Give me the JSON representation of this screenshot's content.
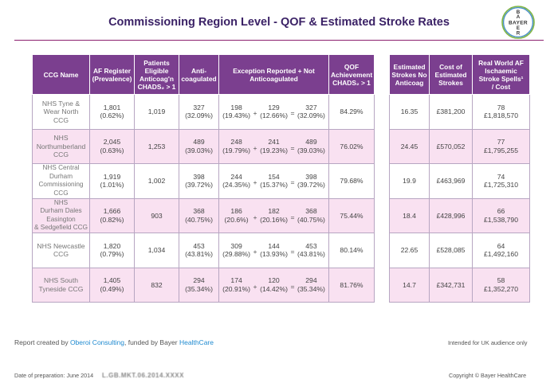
{
  "title": "Commissioning Region Level - QOF & Estimated Stroke Rates",
  "logo": {
    "text_top": "B",
    "text_row": "BAYER",
    "text_bottom": "R",
    "text_middle": "A Y E"
  },
  "table_left": {
    "headers": {
      "ccg": "CCG Name",
      "af_reg": "AF Register (Prevalence)",
      "eligible": [
        "Patients Eligible",
        "Anticoag'n",
        "CHADS₂ > 1"
      ],
      "anticoag": "Anti-coagulated",
      "exception": "Exception Reported + Not Anticoagulated",
      "qof": [
        "QOF Achievement",
        "CHADS₂ > 1"
      ]
    },
    "rows": [
      {
        "ccg": [
          "NHS Tyne & Wear North",
          "CCG"
        ],
        "af": "1,801",
        "af_pct": "(0.62%)",
        "eligible": "1,019",
        "anti": "327",
        "anti_pct": "(32.09%)",
        "e1": "198",
        "e1p": "(19.43%)",
        "e2": "129",
        "e2p": "(12.66%)",
        "e3": "327",
        "e3p": "(32.09%)",
        "qof": "84.29%"
      },
      {
        "ccg": [
          "NHS Northumberland",
          "CCG"
        ],
        "af": "2,045",
        "af_pct": "(0.63%)",
        "eligible": "1,253",
        "anti": "489",
        "anti_pct": "(39.03%)",
        "e1": "248",
        "e1p": "(19.79%)",
        "e2": "241",
        "e2p": "(19.23%)",
        "e3": "489",
        "e3p": "(39.03%)",
        "qof": "76.02%"
      },
      {
        "ccg": [
          "NHS Central",
          "Durham",
          "Commissioning",
          "CCG"
        ],
        "af": "1,919",
        "af_pct": "(1.01%)",
        "eligible": "1,002",
        "anti": "398",
        "anti_pct": "(39.72%)",
        "e1": "244",
        "e1p": "(24.35%)",
        "e2": "154",
        "e2p": "(15.37%)",
        "e3": "398",
        "e3p": "(39.72%)",
        "qof": "79.68%"
      },
      {
        "ccg": [
          "NHS",
          "Durham Dales Easington",
          "& Sedgefield CCG"
        ],
        "af": "1,666",
        "af_pct": "(0.82%)",
        "eligible": "903",
        "anti": "368",
        "anti_pct": "(40.75%)",
        "e1": "186",
        "e1p": "(20.6%)",
        "e2": "182",
        "e2p": "(20.16%)",
        "e3": "368",
        "e3p": "(40.75%)",
        "qof": "75.44%"
      },
      {
        "ccg": [
          "NHS Newcastle",
          "CCG"
        ],
        "af": "1,820",
        "af_pct": "(0.79%)",
        "eligible": "1,034",
        "anti": "453",
        "anti_pct": "(43.81%)",
        "e1": "309",
        "e1p": "(29.88%)",
        "e2": "144",
        "e2p": "(13.93%)",
        "e3": "453",
        "e3p": "(43.81%)",
        "qof": "80.14%"
      },
      {
        "ccg": [
          "NHS South",
          "Tyneside CCG"
        ],
        "af": "1,405",
        "af_pct": "(0.49%)",
        "eligible": "832",
        "anti": "294",
        "anti_pct": "(35.34%)",
        "e1": "174",
        "e1p": "(20.91%)",
        "e2": "120",
        "e2p": "(14.42%)",
        "e3": "294",
        "e3p": "(35.34%)",
        "qof": "81.76%"
      }
    ]
  },
  "table_right": {
    "headers": {
      "est": "Estimated Strokes No Anticoag",
      "cost": "Cost of Estimated Strokes",
      "rw": [
        "Real World AF",
        "Ischaemic",
        "Stroke Spells¹",
        "/ Cost"
      ]
    },
    "rows": [
      {
        "est": "16.35",
        "cost": "£381,200",
        "rw": "78",
        "rw_cost": "£1,818,570"
      },
      {
        "est": "24.45",
        "cost": "£570,052",
        "rw": "77",
        "rw_cost": "£1,795,255"
      },
      {
        "est": "19.9",
        "cost": "£463,969",
        "rw": "74",
        "rw_cost": "£1,725,310"
      },
      {
        "est": "18.4",
        "cost": "£428,996",
        "rw": "66",
        "rw_cost": "£1,538,790"
      },
      {
        "est": "22.65",
        "cost": "£528,085",
        "rw": "64",
        "rw_cost": "£1,492,160"
      },
      {
        "est": "14.7",
        "cost": "£342,731",
        "rw": "58",
        "rw_cost": "£1,352,270"
      }
    ]
  },
  "footer": {
    "report_prefix": "Report created by ",
    "oberoi": "Oberoi Consulting",
    "funded": ", funded by Bayer ",
    "healthcare": "HealthCare",
    "uk_only": "Intended for UK audience only",
    "date": "Date of preparation: June 2014",
    "ref": "L.GB.MKT.06.2014.XXXX",
    "copyright": "Copyright © Bayer HealthCare"
  }
}
